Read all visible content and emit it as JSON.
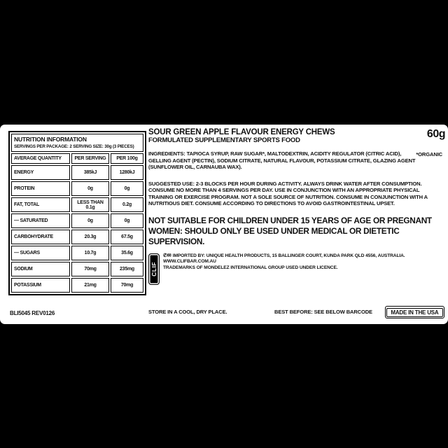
{
  "package": {
    "product_title": "SOUR GREEN APPLE FLAVOUR ENERGY CHEWS",
    "subtitle": "FORMULATED SUPPLEMENTARY SPORTS FOOD",
    "net_weight": "60g",
    "ingredients": "INGREDIENTS: TAPIOCA SYRUP, RAW SUGAR*, MALTODEXTRIN, ACIDITY REGULATOR (CITRIC ACID), GELLING AGENT (PECTIN), SODIUM CITRATE, NATURAL FLAVOUR, POTASSIUM CITRATE, GLAZING AGENT (SUNFLOWER OIL, CARNAUBA WAX).",
    "organic_note": "*ORGANIC",
    "suggested_use": "SUGGESTED USE: 2-3 BLOCKS PER HOUR DURING ACTIVITY. ALWAYS DRINK WATER AFTER CONSUMPTION. CONSUME NO MORE THAN 4 SERVINGS PER DAY. USE IN CONJUNCTION WITH AN APPROPRIATE PHYSICAL TRAINING OR EXERCISE PROGRAM. NOT A SOLE SOURCE OF NUTRITION. CONSUME IN CONJUNCTION WITH A NUTRITIOUS DIET. CONSUME ACCORDING TO DIRECTIONS TO AVOID GASTROINTESTINAL UPSET.",
    "warning": "NOT SUITABLE FOR CHILDREN UNDER 15 YEARS OF AGE OR PREGNANT WOMEN: SHOULD ONLY BE USED UNDER MEDICAL OR DIETETIC SUPERVISION.",
    "brand_badge": "CLIF",
    "contact_icons": "✆✉",
    "distributor_line1": "IMPORTED BY: UNIQUE HEALTH PRODUCTS, 15 BALLINGER COURT, KUNDA PARK QLD 4556, AUSTRALIA. WWW.CLIFBAR.COM.AU",
    "distributor_line2": "TRADEMARKS OF MONDELEZ INTERNATIONAL GROUP USED UNDER LICENCE.",
    "product_code": "BLI5045 REV0126",
    "storage": "STORE IN A COOL, DRY PLACE.",
    "best_before": "BEST BEFORE: SEE BELOW BARCODE",
    "origin": "MADE IN THE USA",
    "text_color": "#111111",
    "background_color": "#ffffff"
  },
  "table": {
    "title": "NUTRITION INFORMATION",
    "servings_line": "SERVINGS PER PACKAGE: 2   SERVING SIZE: 30g (3 PIECES)",
    "columns": [
      "AVERAGE QUANTITY",
      "PER SERVING",
      "PER 100g"
    ],
    "rows": [
      {
        "label": "ENERGY",
        "serving": "385kJ",
        "per100": "1280kJ"
      },
      {
        "label": "PROTEIN",
        "serving": "0g",
        "per100": "0g"
      },
      {
        "label": "FAT, TOTAL",
        "serving": "LESS THAN 0.1g",
        "per100": "0.2g"
      },
      {
        "label": "— SATURATED",
        "serving": "0g",
        "per100": "0g"
      },
      {
        "label": "CARBOHYDRATE",
        "serving": "20.3g",
        "per100": "67.5g"
      },
      {
        "label": "— SUGARS",
        "serving": "10.7g",
        "per100": "35.6g"
      },
      {
        "label": "SODIUM",
        "serving": "70mg",
        "per100": "235mg"
      },
      {
        "label": "POTASSIUM",
        "serving": "21mg",
        "per100": "70mg"
      }
    ]
  }
}
